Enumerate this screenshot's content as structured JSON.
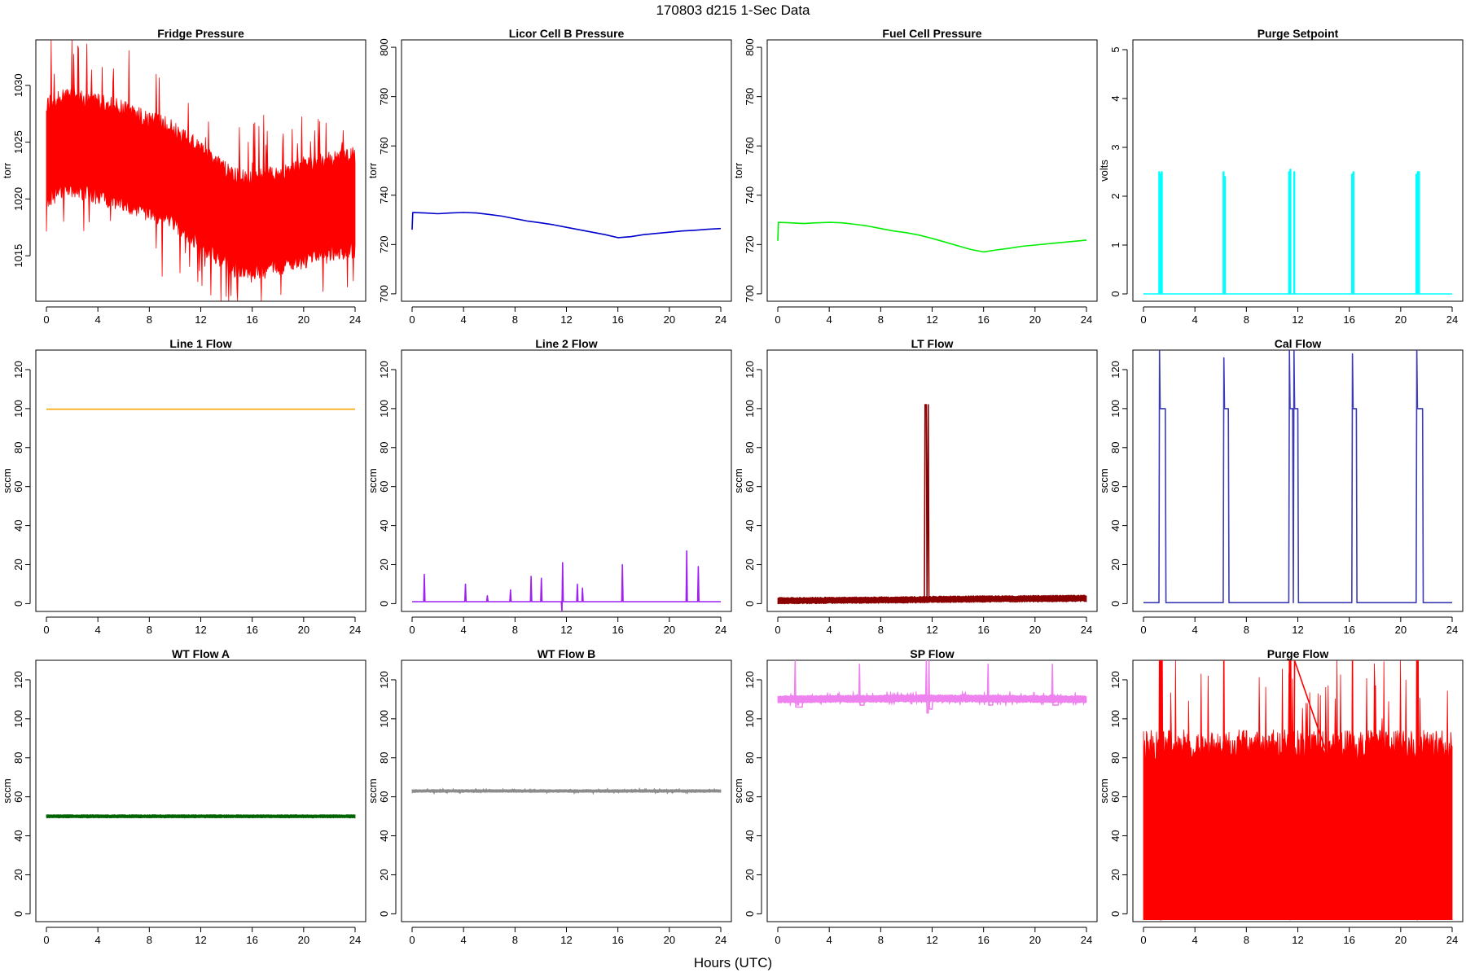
{
  "title": "170803   d215   1-Sec Data",
  "xlabel": "Hours (UTC)",
  "chart_data": [
    {
      "type": "line",
      "title": "Fridge Pressure",
      "ylabel": "torr",
      "color": "#ff0000",
      "xlim": [
        0,
        24
      ],
      "ylim": [
        1011,
        1034
      ],
      "xticks": [
        0,
        4,
        8,
        12,
        16,
        20,
        24
      ],
      "yticks": [
        1015,
        1020,
        1025,
        1030
      ],
      "band": {
        "center": [
          [
            0,
            1024.2
          ],
          [
            2,
            1025
          ],
          [
            6,
            1023.8
          ],
          [
            10,
            1022
          ],
          [
            14,
            1018.3
          ],
          [
            16,
            1017.5
          ],
          [
            20,
            1018.8
          ],
          [
            24,
            1019.7
          ]
        ],
        "halfwidth": 4.5,
        "spikes": true
      },
      "series": [
        {
          "name": "Fridge Pressure",
          "x": [
            0,
            2,
            4,
            6,
            8,
            10,
            12,
            14,
            16,
            18,
            20,
            22,
            24
          ],
          "y": [
            1024.2,
            1025,
            1024.5,
            1023.8,
            1023,
            1022,
            1021,
            1018.3,
            1017.5,
            1018,
            1018.8,
            1019.3,
            1019.7
          ]
        }
      ]
    },
    {
      "type": "line",
      "title": "Licor Cell B Pressure",
      "ylabel": "torr",
      "color": "#0000cd",
      "xlim": [
        0,
        24
      ],
      "ylim": [
        697,
        803
      ],
      "xticks": [
        0,
        4,
        8,
        12,
        16,
        20,
        24
      ],
      "yticks": [
        700,
        720,
        740,
        760,
        780,
        800
      ],
      "series": [
        {
          "name": "Licor Cell B Pressure",
          "x": [
            0,
            0.05,
            1,
            2,
            3,
            4,
            5,
            6,
            7,
            8,
            9,
            10,
            11,
            12,
            13,
            14,
            15,
            16,
            17,
            18,
            19,
            20,
            21,
            22,
            23,
            24
          ],
          "y": [
            726,
            733,
            732.8,
            732.5,
            732.8,
            733,
            732.8,
            732.2,
            731.5,
            730.5,
            729.5,
            728.8,
            728,
            727,
            726,
            725,
            724,
            722.8,
            723.2,
            724,
            724.5,
            725,
            725.5,
            725.8,
            726.2,
            726.5
          ]
        }
      ]
    },
    {
      "type": "line",
      "title": "Fuel Cell Pressure",
      "ylabel": "torr",
      "color": "#00ee00",
      "xlim": [
        0,
        24
      ],
      "ylim": [
        697,
        803
      ],
      "xticks": [
        0,
        4,
        8,
        12,
        16,
        20,
        24
      ],
      "yticks": [
        700,
        720,
        740,
        760,
        780,
        800
      ],
      "series": [
        {
          "name": "Fuel Cell Pressure",
          "x": [
            0,
            0.05,
            1,
            2,
            3,
            4,
            5,
            6,
            7,
            8,
            9,
            10,
            11,
            12,
            13,
            14,
            15,
            16,
            17,
            18,
            19,
            20,
            21,
            22,
            23,
            24
          ],
          "y": [
            721.5,
            729,
            728.8,
            728.5,
            728.8,
            729,
            728.8,
            728.2,
            727.5,
            726.5,
            725.5,
            724.8,
            723.8,
            722.5,
            721,
            719.5,
            718,
            717,
            717.8,
            718.5,
            719.3,
            719.8,
            720.3,
            720.8,
            721.3,
            721.8
          ]
        }
      ]
    },
    {
      "type": "line",
      "title": "Purge Setpoint",
      "ylabel": "volts",
      "color": "#00ffff",
      "xlim": [
        0,
        24
      ],
      "ylim": [
        -0.15,
        5.2
      ],
      "xticks": [
        0,
        4,
        8,
        12,
        16,
        20,
        24
      ],
      "yticks": [
        0,
        1,
        2,
        3,
        4,
        5
      ],
      "series": [
        {
          "name": "Purge Setpoint",
          "x": [
            0,
            1.2,
            1.2,
            1.25,
            1.25,
            1.3,
            1.3,
            1.35,
            1.35,
            1.4,
            1.4,
            1.45,
            1.45,
            1.5,
            1.5,
            6.2,
            6.2,
            6.25,
            6.25,
            6.3,
            6.3,
            6.35,
            6.35,
            6.4,
            6.4,
            11.3,
            11.3,
            11.35,
            11.35,
            11.4,
            11.4,
            11.45,
            11.45,
            11.5,
            11.5,
            11.7,
            11.7,
            11.75,
            11.75,
            11.8,
            11.8,
            16.2,
            16.2,
            16.25,
            16.25,
            16.3,
            16.3,
            16.35,
            16.35,
            16.4,
            16.4,
            21.2,
            21.2,
            21.25,
            21.25,
            21.3,
            21.3,
            21.35,
            21.35,
            21.4,
            21.4,
            21.45,
            21.45,
            21.5,
            21.5,
            24
          ],
          "y": [
            0,
            0,
            2.5,
            2.5,
            0,
            0,
            2.45,
            2.45,
            0,
            0,
            2.5,
            2.5,
            0,
            0,
            0,
            0,
            2.5,
            2.5,
            0,
            0,
            2.4,
            2.4,
            0,
            0,
            0,
            0,
            2.5,
            2.5,
            0,
            0,
            2.55,
            2.55,
            0,
            0,
            0,
            0,
            2.5,
            2.5,
            0,
            0,
            0,
            0,
            2.45,
            2.45,
            0,
            0,
            2.5,
            2.5,
            0,
            0,
            0,
            0,
            2.45,
            2.45,
            0,
            0,
            2.5,
            2.5,
            0,
            0,
            2.5,
            2.5,
            0,
            0,
            0,
            0
          ]
        }
      ]
    },
    {
      "type": "line",
      "title": "Line 1 Flow",
      "ylabel": "sccm",
      "color": "#ffa500",
      "xlim": [
        0,
        24
      ],
      "ylim": [
        -4,
        130
      ],
      "xticks": [
        0,
        4,
        8,
        12,
        16,
        20,
        24
      ],
      "yticks": [
        0,
        20,
        40,
        60,
        80,
        100,
        120
      ],
      "series": [
        {
          "name": "Line 1 Flow",
          "x": [
            0,
            24
          ],
          "y": [
            99.7,
            99.7
          ]
        }
      ]
    },
    {
      "type": "line",
      "title": "Line 2 Flow",
      "ylabel": "sccm",
      "color": "#a020f0",
      "xlim": [
        0,
        24
      ],
      "ylim": [
        -4,
        130
      ],
      "xticks": [
        0,
        4,
        8,
        12,
        16,
        20,
        24
      ],
      "yticks": [
        0,
        20,
        40,
        60,
        80,
        100,
        120
      ],
      "series": [
        {
          "name": "Line 2 Flow",
          "x": [
            0,
            0.9,
            0.95,
            1.0,
            4.1,
            4.15,
            4.2,
            5.8,
            5.85,
            5.9,
            7.6,
            7.65,
            7.7,
            9.2,
            9.25,
            9.3,
            10.0,
            10.05,
            10.1,
            11.6,
            11.65,
            11.7,
            11.75,
            12.8,
            12.85,
            12.9,
            13.2,
            13.25,
            13.3,
            16.3,
            16.35,
            16.4,
            21.3,
            21.35,
            21.4,
            22.2,
            22.25,
            22.3,
            24
          ],
          "y": [
            1,
            1,
            15,
            1,
            1,
            10,
            1,
            1,
            4,
            1,
            1,
            7,
            1,
            1,
            14,
            1,
            1,
            13,
            1,
            1,
            -4,
            21,
            1,
            1,
            10,
            1,
            1,
            8,
            1,
            1,
            20,
            1,
            1,
            27,
            1,
            1,
            19,
            1,
            1
          ]
        }
      ]
    },
    {
      "type": "line",
      "title": "LT Flow",
      "ylabel": "sccm",
      "color": "#8b0000",
      "xlim": [
        0,
        24
      ],
      "ylim": [
        -4,
        130
      ],
      "xticks": [
        0,
        4,
        8,
        12,
        16,
        20,
        24
      ],
      "yticks": [
        0,
        20,
        40,
        60,
        80,
        100,
        120
      ],
      "band": {
        "center": [
          [
            0,
            1.5
          ],
          [
            11.4,
            2
          ],
          [
            12,
            2.2
          ],
          [
            24,
            2.7
          ]
        ],
        "halfwidth": 1.6,
        "spikes": false
      },
      "series": [
        {
          "name": "LT Flow",
          "x": [
            0,
            11.4,
            11.45,
            11.55,
            11.6,
            11.7,
            11.75,
            12,
            24
          ],
          "y": [
            1.5,
            2,
            102,
            102,
            2,
            102,
            2,
            2.2,
            2.7
          ]
        }
      ]
    },
    {
      "type": "line",
      "title": "Cal Flow",
      "ylabel": "sccm",
      "color": "#3b3bb5",
      "xlim": [
        0,
        24
      ],
      "ylim": [
        -4,
        130
      ],
      "xticks": [
        0,
        4,
        8,
        12,
        16,
        20,
        24
      ],
      "yticks": [
        0,
        20,
        40,
        60,
        80,
        100,
        120
      ],
      "series": [
        {
          "name": "Cal Flow",
          "x": [
            0,
            1.2,
            1.25,
            1.3,
            1.7,
            1.75,
            6.2,
            6.25,
            6.3,
            6.6,
            6.65,
            11.3,
            11.35,
            11.4,
            11.6,
            11.65,
            11.7,
            11.75,
            11.8,
            12.0,
            12.05,
            16.2,
            16.25,
            16.3,
            16.55,
            16.6,
            21.2,
            21.25,
            21.3,
            21.7,
            21.75,
            24
          ],
          "y": [
            0.5,
            0.5,
            130,
            100,
            100,
            0.5,
            0.5,
            126,
            100,
            100,
            0.5,
            0.5,
            130,
            100,
            100,
            0.5,
            130,
            100,
            100,
            100,
            0.5,
            0.5,
            128,
            100,
            100,
            0.5,
            0.5,
            130,
            100,
            100,
            0.5,
            0.5
          ]
        }
      ]
    },
    {
      "type": "line",
      "title": "WT Flow A",
      "ylabel": "sccm",
      "color": "#006400",
      "xlim": [
        0,
        24
      ],
      "ylim": [
        -4,
        130
      ],
      "xticks": [
        0,
        4,
        8,
        12,
        16,
        20,
        24
      ],
      "yticks": [
        0,
        20,
        40,
        60,
        80,
        100,
        120
      ],
      "band": {
        "center": [
          [
            0,
            50
          ],
          [
            24,
            50
          ]
        ],
        "halfwidth": 0.8,
        "spikes": false
      },
      "series": [
        {
          "name": "WT Flow A",
          "x": [
            0,
            24
          ],
          "y": [
            50,
            50
          ]
        }
      ]
    },
    {
      "type": "line",
      "title": "WT Flow B",
      "ylabel": "sccm",
      "color": "#8c8c8c",
      "xlim": [
        0,
        24
      ],
      "ylim": [
        -4,
        130
      ],
      "xticks": [
        0,
        4,
        8,
        12,
        16,
        20,
        24
      ],
      "yticks": [
        0,
        20,
        40,
        60,
        80,
        100,
        120
      ],
      "band": {
        "center": [
          [
            0,
            63
          ],
          [
            24,
            63
          ]
        ],
        "halfwidth": 0.7,
        "spikes": true
      },
      "series": [
        {
          "name": "WT Flow B",
          "x": [
            0,
            24
          ],
          "y": [
            63,
            63
          ]
        }
      ]
    },
    {
      "type": "line",
      "title": "SP Flow",
      "ylabel": "sccm",
      "color": "#ee82ee",
      "xlim": [
        0,
        24
      ],
      "ylim": [
        -4,
        130
      ],
      "xticks": [
        0,
        4,
        8,
        12,
        16,
        20,
        24
      ],
      "yticks": [
        0,
        20,
        40,
        60,
        80,
        100,
        120
      ],
      "band": {
        "center": [
          [
            0,
            110
          ],
          [
            12,
            110.5
          ],
          [
            24,
            110
          ]
        ],
        "halfwidth": 1.8,
        "spikes": true
      },
      "series": [
        {
          "name": "SP Flow",
          "x": [
            0,
            1.3,
            1.35,
            1.4,
            1.9,
            1.95,
            6.3,
            6.35,
            6.4,
            6.7,
            6.75,
            11.5,
            11.55,
            11.6,
            11.7,
            11.75,
            11.8,
            12.0,
            12.05,
            16.3,
            16.35,
            16.4,
            16.7,
            16.75,
            21.3,
            21.35,
            21.4,
            21.8,
            21.85,
            24
          ],
          "y": [
            110,
            110,
            130,
            106,
            106,
            110,
            110,
            128,
            107,
            107,
            110,
            110,
            130,
            103,
            103,
            130,
            105,
            105,
            110,
            110,
            128,
            107,
            107,
            110,
            110,
            128,
            107,
            107,
            110,
            110
          ]
        }
      ]
    },
    {
      "type": "line",
      "title": "Purge Flow",
      "ylabel": "sccm",
      "color": "#ff0000",
      "xlim": [
        0,
        24
      ],
      "ylim": [
        -4,
        130
      ],
      "xticks": [
        0,
        4,
        8,
        12,
        16,
        20,
        24
      ],
      "yticks": [
        0,
        20,
        40,
        60,
        80,
        100,
        120
      ],
      "band": {
        "center": [
          [
            0,
            45
          ],
          [
            24,
            45
          ]
        ],
        "halfwidth": 45,
        "spikes": true,
        "floor": -3
      },
      "series": [
        {
          "name": "Purge Flow",
          "x": [
            0,
            1.2,
            1.25,
            1.3,
            1.35,
            1.4,
            1.45,
            1.5,
            6.2,
            6.25,
            6.3,
            11.3,
            11.35,
            11.4,
            11.45,
            11.5,
            11.7,
            11.75,
            16.2,
            16.25,
            16.3,
            21.2,
            21.25,
            21.3,
            21.35,
            21.4,
            24
          ],
          "y": [
            45,
            45,
            130,
            -3,
            130,
            -3,
            130,
            45,
            45,
            130,
            45,
            45,
            130,
            -3,
            130,
            45,
            45,
            130,
            45,
            130,
            45,
            45,
            130,
            -3,
            130,
            45,
            45
          ]
        }
      ]
    }
  ]
}
